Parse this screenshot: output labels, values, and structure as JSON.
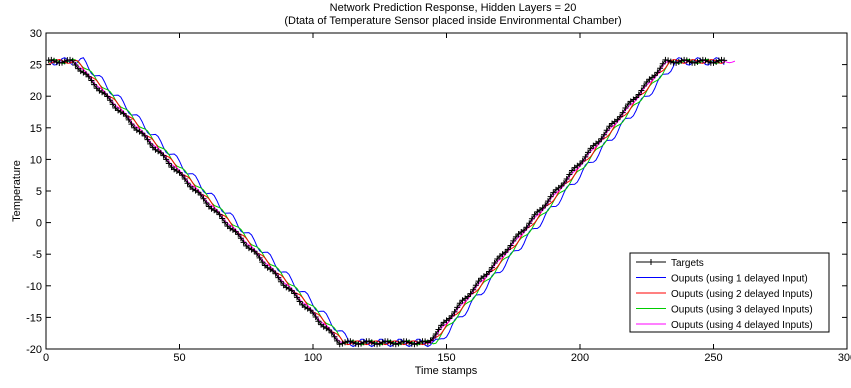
{
  "chart_data": {
    "type": "line",
    "title": "Network Prediction Response,  Hidden Layers = 20",
    "subtitle": "(Dtata of Temperature Sensor placed inside Environmental Chamber)",
    "xlabel": "Time stamps",
    "ylabel": "Temperature",
    "xlim": [
      0,
      300
    ],
    "ylim": [
      -20,
      30
    ],
    "xticks": [
      0,
      50,
      100,
      150,
      200,
      250,
      300
    ],
    "yticks": [
      -20,
      -15,
      -10,
      -5,
      0,
      5,
      10,
      15,
      20,
      25,
      30
    ],
    "grid": false,
    "legend": "bottom-right",
    "profile": {
      "x": [
        0,
        10,
        110,
        143,
        232,
        258
      ],
      "y": [
        25.5,
        25.5,
        -19,
        -19,
        25.5,
        25.5
      ]
    },
    "series": [
      {
        "name": "Targets",
        "color": "#000000",
        "marker": "plus",
        "x_end": 254,
        "lag": 0,
        "wobble": 0.25
      },
      {
        "name": "Ouputs (using 1 delayed Input)",
        "color": "#0000ff",
        "marker": "none",
        "x_end": 254,
        "lag": 4,
        "wobble": 0.6
      },
      {
        "name": "Ouputs (using 2 delayed Inputs)",
        "color": "#ff0000",
        "marker": "none",
        "x_end": 254,
        "lag": 1.5,
        "wobble": 0.3
      },
      {
        "name": "Ouputs (using 3 delayed Inputs)",
        "color": "#00cc00",
        "marker": "none",
        "x_end": 254,
        "lag": 2.5,
        "wobble": 0.35
      },
      {
        "name": "Ouputs (using 4 delayed Inputs)",
        "color": "#ff00ff",
        "marker": "none",
        "x_end": 258,
        "lag": 0.8,
        "wobble": 0.2
      }
    ]
  }
}
